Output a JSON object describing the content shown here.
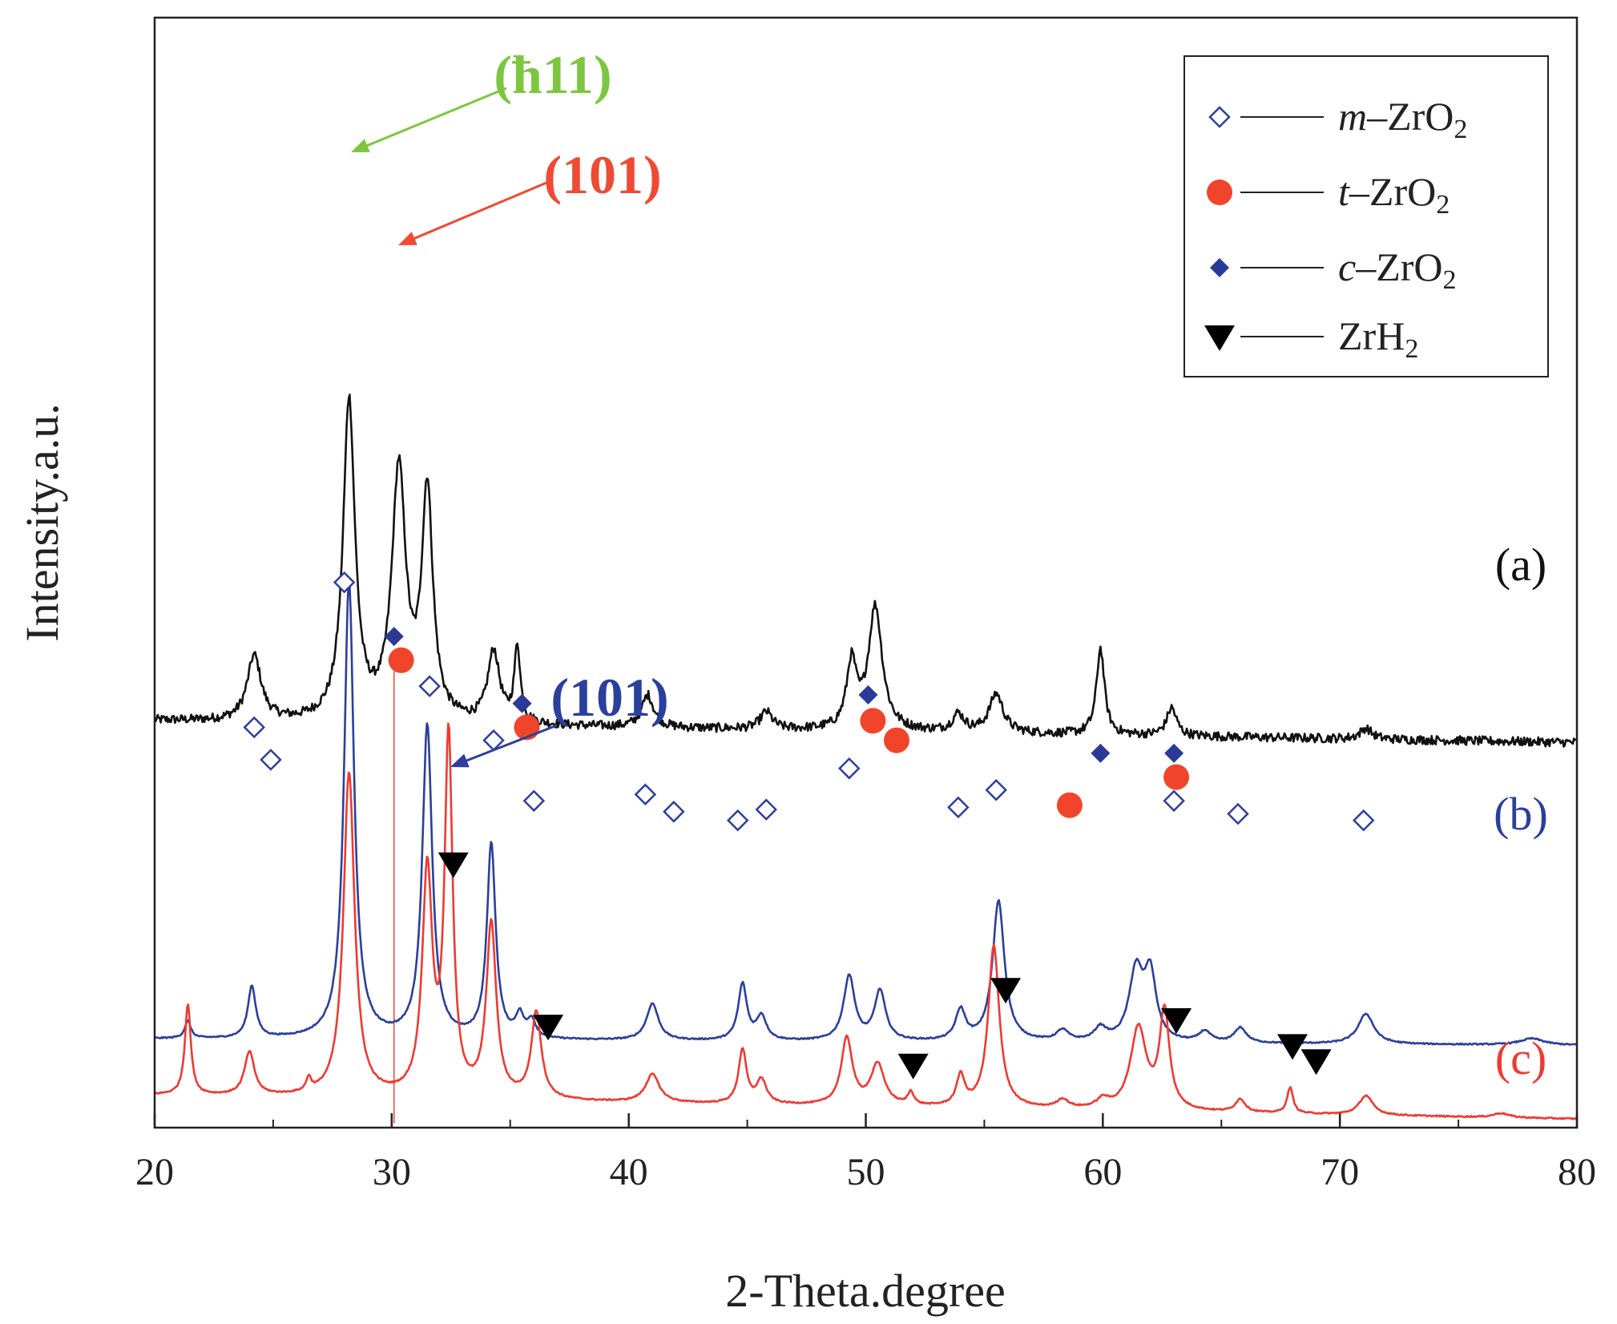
{
  "chart_data": {
    "type": "line",
    "title": "",
    "xlabel": "2-Theta.degree",
    "ylabel": "Intensity.a.u.",
    "xlim": [
      20,
      80
    ],
    "x_ticks": [
      20,
      30,
      40,
      50,
      60,
      70,
      80
    ],
    "x_tick_labels": [
      "20",
      "30",
      "40",
      "50",
      "60",
      "70",
      "80"
    ],
    "legend_position": "top-right",
    "legend": [
      {
        "symbol": "open-diamond",
        "label_italic": "m",
        "label_rest": "–ZrO",
        "label_sub": "2",
        "color": "#2e3f9e"
      },
      {
        "symbol": "filled-circle",
        "label_italic": "t",
        "label_rest": "–ZrO",
        "label_sub": "2",
        "color": "#f0452b"
      },
      {
        "symbol": "filled-diamond",
        "label_italic": "c",
        "label_rest": "–ZrO",
        "label_sub": "2",
        "color": "#2e3f9e"
      },
      {
        "symbol": "filled-triangle-down",
        "label_italic": "",
        "label_rest": "ZrH",
        "label_sub": "2",
        "color": "#000000"
      }
    ],
    "series": [
      {
        "name": "(a)",
        "color": "#111111",
        "noise": 0.35,
        "baseline": {
          "start": 0.43,
          "end": 0.33
        },
        "peaks": [
          {
            "x": 24.2,
            "h": 0.3,
            "w": 0.35
          },
          {
            "x": 28.2,
            "h": 1.48,
            "w": 0.3
          },
          {
            "x": 30.3,
            "h": 1.15,
            "w": 0.35
          },
          {
            "x": 31.5,
            "h": 1.05,
            "w": 0.28
          },
          {
            "x": 34.3,
            "h": 0.33,
            "w": 0.3
          },
          {
            "x": 35.3,
            "h": 0.35,
            "w": 0.15
          },
          {
            "x": 40.8,
            "h": 0.15,
            "w": 0.3
          },
          {
            "x": 45.8,
            "h": 0.08,
            "w": 0.3
          },
          {
            "x": 49.4,
            "h": 0.3,
            "w": 0.25
          },
          {
            "x": 50.4,
            "h": 0.57,
            "w": 0.35
          },
          {
            "x": 53.9,
            "h": 0.08,
            "w": 0.3
          },
          {
            "x": 55.5,
            "h": 0.18,
            "w": 0.35
          },
          {
            "x": 59.9,
            "h": 0.4,
            "w": 0.2
          },
          {
            "x": 62.9,
            "h": 0.13,
            "w": 0.25
          },
          {
            "x": 71.1,
            "h": 0.05,
            "w": 0.3
          }
        ]
      },
      {
        "name": "(b)",
        "color": "#2b3f9c",
        "noise": 0.05,
        "baseline": {
          "start": 0.16,
          "end": 0.13
        },
        "peaks": [
          {
            "x": 21.4,
            "h": 0.08,
            "w": 0.15
          },
          {
            "x": 24.1,
            "h": 0.24,
            "w": 0.2
          },
          {
            "x": 28.2,
            "h": 2.12,
            "w": 0.25
          },
          {
            "x": 31.5,
            "h": 1.45,
            "w": 0.25
          },
          {
            "x": 34.2,
            "h": 0.9,
            "w": 0.22
          },
          {
            "x": 35.4,
            "h": 0.1,
            "w": 0.2
          },
          {
            "x": 35.9,
            "h": 0.08,
            "w": 0.2
          },
          {
            "x": 41.0,
            "h": 0.17,
            "w": 0.3
          },
          {
            "x": 44.8,
            "h": 0.26,
            "w": 0.22
          },
          {
            "x": 45.6,
            "h": 0.11,
            "w": 0.25
          },
          {
            "x": 49.3,
            "h": 0.3,
            "w": 0.28
          },
          {
            "x": 50.6,
            "h": 0.23,
            "w": 0.28
          },
          {
            "x": 54.0,
            "h": 0.14,
            "w": 0.25
          },
          {
            "x": 55.6,
            "h": 0.65,
            "w": 0.3
          },
          {
            "x": 58.3,
            "h": 0.05,
            "w": 0.3
          },
          {
            "x": 59.9,
            "h": 0.06,
            "w": 0.3
          },
          {
            "x": 61.4,
            "h": 0.32,
            "w": 0.35
          },
          {
            "x": 62.0,
            "h": 0.3,
            "w": 0.3
          },
          {
            "x": 64.3,
            "h": 0.05,
            "w": 0.3
          },
          {
            "x": 65.8,
            "h": 0.07,
            "w": 0.3
          },
          {
            "x": 71.1,
            "h": 0.14,
            "w": 0.4
          },
          {
            "x": 78.1,
            "h": 0.03,
            "w": 0.6
          }
        ]
      },
      {
        "name": "(c)",
        "color": "#ee3a32",
        "noise": 0.05,
        "baseline": {
          "start": 0.15,
          "end": 0.04
        },
        "peaks": [
          {
            "x": 21.4,
            "h": 0.42,
            "w": 0.15
          },
          {
            "x": 24.0,
            "h": 0.2,
            "w": 0.25
          },
          {
            "x": 26.5,
            "h": 0.06,
            "w": 0.12
          },
          {
            "x": 28.2,
            "h": 1.5,
            "w": 0.28
          },
          {
            "x": 31.5,
            "h": 1.03,
            "w": 0.25
          },
          {
            "x": 32.4,
            "h": 1.65,
            "w": 0.2
          },
          {
            "x": 34.2,
            "h": 0.8,
            "w": 0.25
          },
          {
            "x": 36.1,
            "h": 0.4,
            "w": 0.25
          },
          {
            "x": 41.0,
            "h": 0.13,
            "w": 0.35
          },
          {
            "x": 44.8,
            "h": 0.25,
            "w": 0.2
          },
          {
            "x": 45.6,
            "h": 0.11,
            "w": 0.25
          },
          {
            "x": 49.2,
            "h": 0.31,
            "w": 0.28
          },
          {
            "x": 50.5,
            "h": 0.19,
            "w": 0.35
          },
          {
            "x": 51.9,
            "h": 0.06,
            "w": 0.15
          },
          {
            "x": 54.0,
            "h": 0.14,
            "w": 0.2
          },
          {
            "x": 55.4,
            "h": 0.75,
            "w": 0.28
          },
          {
            "x": 58.3,
            "h": 0.04,
            "w": 0.3
          },
          {
            "x": 60.0,
            "h": 0.04,
            "w": 0.3
          },
          {
            "x": 61.5,
            "h": 0.38,
            "w": 0.4
          },
          {
            "x": 62.6,
            "h": 0.45,
            "w": 0.25
          },
          {
            "x": 65.8,
            "h": 0.06,
            "w": 0.25
          },
          {
            "x": 67.9,
            "h": 0.12,
            "w": 0.15
          },
          {
            "x": 71.1,
            "h": 0.09,
            "w": 0.35
          },
          {
            "x": 76.8,
            "h": 0.02,
            "w": 0.4
          }
        ]
      }
    ],
    "series_labels": [
      {
        "text": "(a)",
        "color": "#111111"
      },
      {
        "text": "(b)",
        "color": "#2b3f9c"
      },
      {
        "text": "(c)",
        "color": "#ee3a32"
      }
    ],
    "peak_annotations": [
      {
        "text": "(ħ11)",
        "overbar_char": "1",
        "prefix": "(",
        "suffix": "11)",
        "color": "#7ec63f",
        "x": 28.2
      },
      {
        "text": "(101)",
        "color": "#ef4a34",
        "x": 30.3
      },
      {
        "text": "(101)",
        "color": "#2b3f9c",
        "x": 32.4
      }
    ],
    "reference_line_x": 30.1,
    "markers": [
      {
        "type": "open-diamond",
        "x": 28.0,
        "y": 2.52
      },
      {
        "type": "filled-diamond",
        "x": 30.1,
        "y": 2.27
      },
      {
        "type": "filled-circle",
        "x": 30.4,
        "y": 2.16
      },
      {
        "type": "open-diamond",
        "x": 31.6,
        "y": 2.04
      },
      {
        "type": "open-diamond",
        "x": 24.2,
        "y": 1.85
      },
      {
        "type": "open-diamond",
        "x": 24.9,
        "y": 1.7
      },
      {
        "type": "filled-diamond",
        "x": 35.5,
        "y": 1.96
      },
      {
        "type": "filled-circle",
        "x": 35.7,
        "y": 1.85
      },
      {
        "type": "open-diamond",
        "x": 34.3,
        "y": 1.79
      },
      {
        "type": "open-diamond",
        "x": 36.0,
        "y": 1.51
      },
      {
        "type": "open-diamond",
        "x": 40.7,
        "y": 1.54
      },
      {
        "type": "open-diamond",
        "x": 41.9,
        "y": 1.46
      },
      {
        "type": "open-diamond",
        "x": 44.6,
        "y": 1.42
      },
      {
        "type": "open-diamond",
        "x": 45.8,
        "y": 1.47
      },
      {
        "type": "filled-diamond",
        "x": 50.1,
        "y": 2.0
      },
      {
        "type": "filled-circle",
        "x": 50.3,
        "y": 1.88
      },
      {
        "type": "filled-circle",
        "x": 51.3,
        "y": 1.79
      },
      {
        "type": "open-diamond",
        "x": 49.3,
        "y": 1.66
      },
      {
        "type": "open-diamond",
        "x": 53.9,
        "y": 1.48
      },
      {
        "type": "open-diamond",
        "x": 55.5,
        "y": 1.56
      },
      {
        "type": "filled-circle",
        "x": 58.6,
        "y": 1.49
      },
      {
        "type": "filled-diamond",
        "x": 59.9,
        "y": 1.73
      },
      {
        "type": "filled-diamond",
        "x": 63.0,
        "y": 1.73
      },
      {
        "type": "filled-circle",
        "x": 63.1,
        "y": 1.62
      },
      {
        "type": "open-diamond",
        "x": 63.0,
        "y": 1.51
      },
      {
        "type": "open-diamond",
        "x": 65.7,
        "y": 1.45
      },
      {
        "type": "open-diamond",
        "x": 71.0,
        "y": 1.42
      },
      {
        "type": "filled-triangle-down",
        "x": 32.6,
        "y": 1.22
      },
      {
        "type": "filled-triangle-down",
        "x": 36.6,
        "y": 0.47
      },
      {
        "type": "filled-triangle-down",
        "x": 52.0,
        "y": 0.29
      },
      {
        "type": "filled-triangle-down",
        "x": 55.9,
        "y": 0.64
      },
      {
        "type": "filled-triangle-down",
        "x": 63.1,
        "y": 0.5
      },
      {
        "type": "filled-triangle-down",
        "x": 68.0,
        "y": 0.38
      },
      {
        "type": "filled-triangle-down",
        "x": 69.0,
        "y": 0.31
      }
    ]
  }
}
